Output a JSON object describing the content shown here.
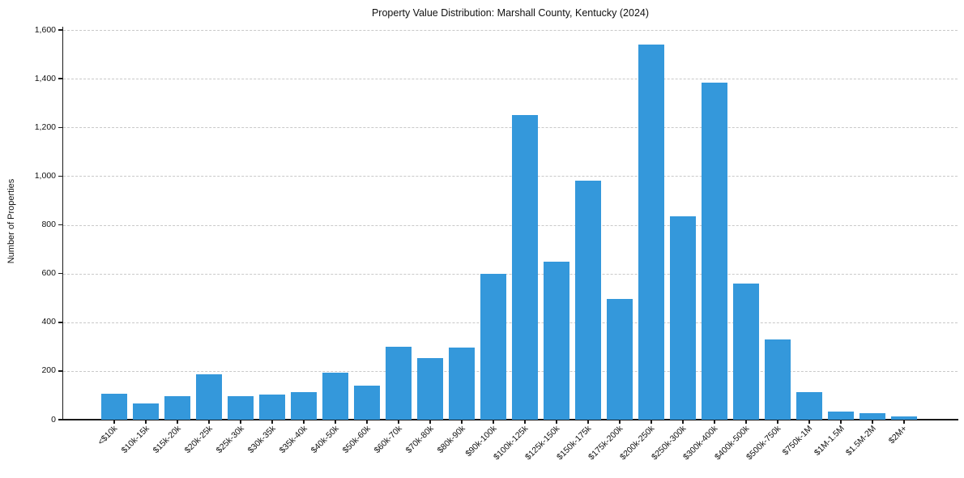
{
  "chart_data": {
    "type": "bar",
    "title": "Property Value Distribution: Marshall County, Kentucky (2024)",
    "xlabel": "",
    "ylabel": "Number of Properties",
    "categories": [
      "<$10k",
      "$10k-15k",
      "$15k-20k",
      "$20k-25k",
      "$25k-30k",
      "$30k-35k",
      "$35k-40k",
      "$40k-50k",
      "$50k-60k",
      "$60k-70k",
      "$70k-80k",
      "$80k-90k",
      "$90k-100k",
      "$100k-125k",
      "$125k-150k",
      "$150k-175k",
      "$175k-200k",
      "$200k-250k",
      "$250k-300k",
      "$300k-400k",
      "$400k-500k",
      "$500k-750k",
      "$750k-1M",
      "$1M-1.5M",
      "$1.5M-2M",
      "$2M+"
    ],
    "values": [
      105,
      65,
      95,
      185,
      98,
      102,
      114,
      192,
      140,
      300,
      253,
      297,
      600,
      1250,
      650,
      983,
      495,
      1540,
      836,
      1385,
      560,
      331,
      114,
      33,
      26,
      13
    ],
    "ylim": [
      0,
      1600
    ],
    "ytick_step": 200,
    "ytick_values": [
      0,
      200,
      400,
      600,
      800,
      1000,
      1200,
      1400,
      1600
    ],
    "ytick_labels": [
      "0",
      "200",
      "400",
      "600",
      "800",
      "1,000",
      "1,200",
      "1,400",
      "1,600"
    ],
    "grid": "horizontal dashed, on",
    "legend": "none",
    "bar_color": "#3498db",
    "grid_color": "#c9c9c9",
    "axis_color": "#1a1a1a",
    "text_color": "#111111",
    "background_color": "#ffffff"
  }
}
